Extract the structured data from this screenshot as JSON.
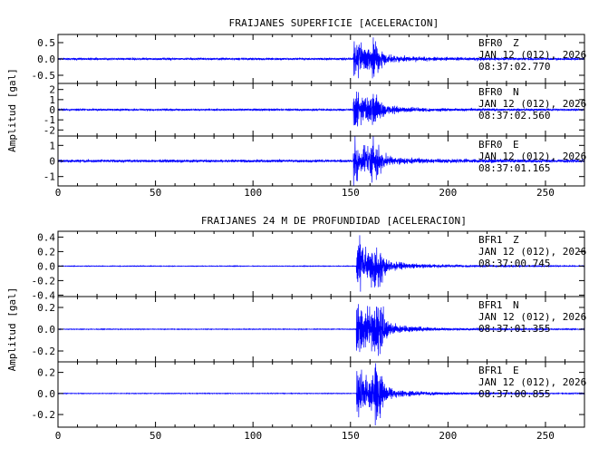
{
  "chart_data": [
    {
      "type": "line",
      "title": "FRAIJANES SUPERFICIE [ACELERACION]",
      "ylabel": "Amplitud [gal]",
      "xlabel": "",
      "xlim": [
        0,
        270
      ],
      "xticks": [
        0,
        50,
        100,
        150,
        200,
        250
      ],
      "xtick_labels": [
        "0",
        "50",
        "100",
        "150",
        "200",
        "250"
      ],
      "line_color": "#0000ff",
      "grid": false,
      "series": [
        {
          "ylim": [
            -0.75,
            0.75
          ],
          "yticks": [
            -0.5,
            0.0,
            0.5
          ],
          "ytick_labels": [
            "-0.5",
            "0.0",
            "0.5"
          ],
          "onset": 151.5,
          "peak": 0.6,
          "noise": 0.03,
          "annotation": {
            "station": "BFR0",
            "component": "Z",
            "date": "JAN 12 (012), 2026",
            "time": "08:37:02.770"
          }
        },
        {
          "ylim": [
            -2.6,
            2.6
          ],
          "yticks": [
            -2,
            -1,
            0,
            1,
            2
          ],
          "ytick_labels": [
            "-2",
            "-1",
            "0",
            "1",
            "2"
          ],
          "onset": 151.5,
          "peak": 2.0,
          "noise": 0.08,
          "annotation": {
            "station": "BFR0",
            "component": "N",
            "date": "JAN 12 (012), 2026",
            "time": "08:37:02.560"
          }
        },
        {
          "ylim": [
            -1.6,
            1.6
          ],
          "yticks": [
            -1,
            0,
            1
          ],
          "ytick_labels": [
            "-1",
            "0",
            "1"
          ],
          "onset": 151.5,
          "peak": 1.4,
          "noise": 0.08,
          "annotation": {
            "station": "BFR0",
            "component": "E",
            "date": "JAN 12 (012), 2026",
            "time": "08:37:01.165"
          }
        }
      ]
    },
    {
      "type": "line",
      "title": "FRAIJANES 24 M DE PROFUNDIDAD [ACELERACION]",
      "ylabel": "Amplitud [gal]",
      "xlabel": "",
      "xlim": [
        0,
        270
      ],
      "xticks": [
        0,
        50,
        100,
        150,
        200,
        250
      ],
      "xtick_labels": [
        "0",
        "50",
        "100",
        "150",
        "200",
        "250"
      ],
      "line_color": "#0000ff",
      "grid": false,
      "series": [
        {
          "ylim": [
            -0.42,
            0.48
          ],
          "yticks": [
            -0.4,
            -0.2,
            0.0,
            0.2,
            0.4
          ],
          "ytick_labels": [
            "-0.4",
            "-0.2",
            "0.0",
            "0.2",
            "0.4"
          ],
          "onset": 153,
          "peak": 0.4,
          "noise": 0.004,
          "annotation": {
            "station": "BFR1",
            "component": "Z",
            "date": "JAN 12 (012), 2026",
            "time": "08:37:00.745"
          }
        },
        {
          "ylim": [
            -0.3,
            0.3
          ],
          "yticks": [
            -0.2,
            0.0,
            0.2
          ],
          "ytick_labels": [
            "-0.2",
            "0.0",
            "0.2"
          ],
          "onset": 153,
          "peak": 0.27,
          "noise": 0.003,
          "annotation": {
            "station": "BFR1",
            "component": "N",
            "date": "JAN 12 (012), 2026",
            "time": "08:37:01.355"
          }
        },
        {
          "ylim": [
            -0.32,
            0.3
          ],
          "yticks": [
            -0.2,
            0.0,
            0.2
          ],
          "ytick_labels": [
            "-0.2",
            "0.0",
            "0.2"
          ],
          "onset": 153,
          "peak": 0.28,
          "noise": 0.003,
          "annotation": {
            "station": "BFR1",
            "component": "E",
            "date": "JAN 12 (012), 2026",
            "time": "08:37:00.855"
          }
        }
      ]
    }
  ]
}
